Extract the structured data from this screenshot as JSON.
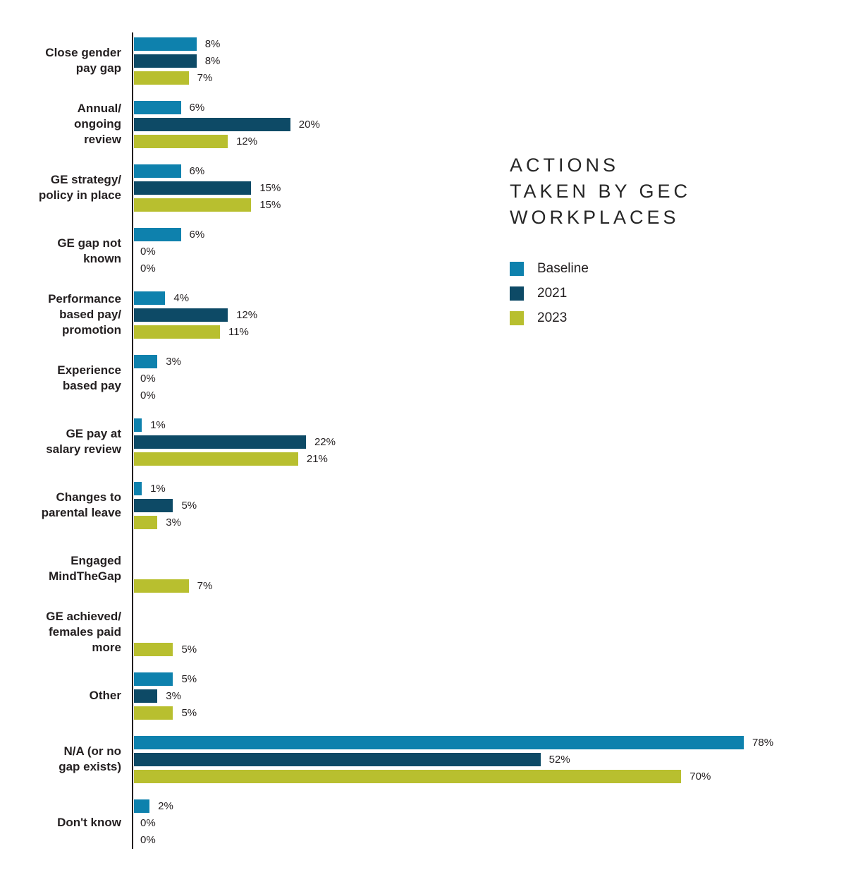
{
  "title": {
    "lines": [
      "ACTIONS",
      "TAKEN BY GEC",
      "WORKPLACES"
    ]
  },
  "legend": [
    {
      "label": "Baseline",
      "color": "#0e81ad"
    },
    {
      "label": "2021",
      "color": "#0d4a66"
    },
    {
      "label": "2023",
      "color": "#b8bf2f"
    }
  ],
  "colors": {
    "baseline": "#0e81ad",
    "y2021": "#0d4a66",
    "y2023": "#b8bf2f",
    "axis": "#231f20",
    "text": "#231f20"
  },
  "chart_data": {
    "type": "bar",
    "orientation": "horizontal",
    "title": "ACTIONS TAKEN BY GEC WORKPLACES",
    "unit": "%",
    "xlim": [
      0,
      80
    ],
    "grid": false,
    "legend_position": "right",
    "value_labels": "outside-end",
    "categories": [
      "Close gender pay gap",
      "Annual/ongoing review",
      "GE strategy/policy in place",
      "GE gap not known",
      "Performance based pay/promotion",
      "Experience based pay",
      "GE pay at salary review",
      "Changes to parental leave",
      "Engaged MindTheGap",
      "GE achieved/females paid more",
      "Other",
      "N/A (or no gap exists)",
      "Don't know"
    ],
    "series": [
      {
        "name": "Baseline",
        "values": [
          8,
          6,
          6,
          6,
          4,
          3,
          1,
          1,
          null,
          null,
          5,
          78,
          2
        ]
      },
      {
        "name": "2021",
        "values": [
          8,
          20,
          15,
          0,
          12,
          0,
          22,
          5,
          null,
          null,
          3,
          52,
          0
        ]
      },
      {
        "name": "2023",
        "values": [
          7,
          12,
          15,
          0,
          11,
          0,
          21,
          3,
          7,
          5,
          5,
          70,
          0
        ]
      }
    ],
    "rows": [
      {
        "lines": [
          "Close gender",
          "pay gap"
        ],
        "values": [
          8,
          8,
          7
        ]
      },
      {
        "lines": [
          "Annual/",
          "ongoing",
          "review"
        ],
        "values": [
          6,
          20,
          12
        ]
      },
      {
        "lines": [
          "GE strategy/",
          "policy in place"
        ],
        "values": [
          6,
          15,
          15
        ]
      },
      {
        "lines": [
          "GE gap not",
          "known"
        ],
        "values": [
          6,
          0,
          0
        ]
      },
      {
        "lines": [
          "Performance",
          "based pay/",
          "promotion"
        ],
        "values": [
          4,
          12,
          11
        ]
      },
      {
        "lines": [
          "Experience",
          "based pay"
        ],
        "values": [
          3,
          0,
          0
        ]
      },
      {
        "lines": [
          "GE pay at",
          "salary review"
        ],
        "values": [
          1,
          22,
          21
        ]
      },
      {
        "lines": [
          "Changes to",
          "parental leave"
        ],
        "values": [
          1,
          5,
          3
        ]
      },
      {
        "lines": [
          "Engaged",
          "MindTheGap"
        ],
        "values": [
          null,
          null,
          7
        ]
      },
      {
        "lines": [
          "GE achieved/",
          "females paid",
          "more"
        ],
        "values": [
          null,
          null,
          5
        ]
      },
      {
        "lines": [
          "Other"
        ],
        "values": [
          5,
          3,
          5
        ]
      },
      {
        "lines": [
          "N/A (or no",
          "gap exists)"
        ],
        "values": [
          78,
          52,
          70
        ]
      },
      {
        "lines": [
          "Don't know"
        ],
        "values": [
          2,
          0,
          0
        ]
      }
    ]
  }
}
